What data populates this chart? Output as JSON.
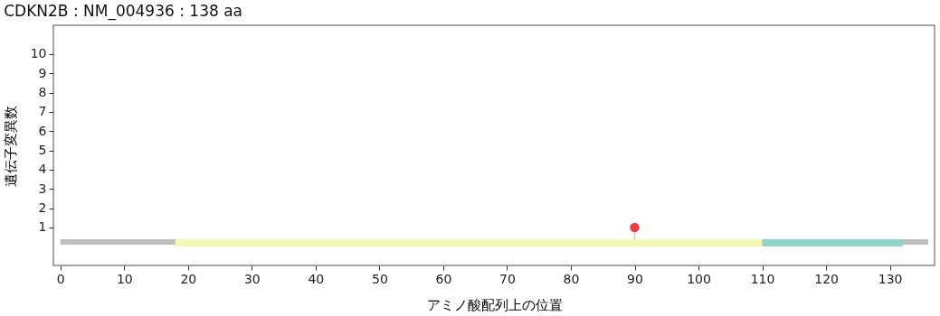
{
  "chart_data": {
    "type": "lollipop",
    "title": "CDKN2B : NM_004936 : 138 aa",
    "xlabel": "アミノ酸配列上の位置",
    "ylabel": "遺伝子変異数",
    "x": [
      90
    ],
    "series": [
      {
        "type": "line",
        "marker": "none",
        "x": [
          0,
          136
        ],
        "color": "#bebebe",
        "values": [
          0.25,
          0.25
        ]
      },
      {
        "type": "line",
        "marker": "none",
        "x": [
          18,
          110
        ],
        "color": "#f3f8b4",
        "values": [
          0.2,
          0.2
        ]
      },
      {
        "type": "line",
        "marker": "none",
        "x": [
          110,
          132
        ],
        "color": "#93d4c8",
        "values": [
          0.2,
          0.2
        ]
      },
      {
        "color": "#e84141",
        "values": [
          1
        ]
      }
    ],
    "xlim": [
      -1.1,
      137
    ],
    "ylim": [
      -0.97,
      11.5
    ],
    "xticks": [
      0,
      10,
      20,
      30,
      40,
      50,
      60,
      70,
      80,
      90,
      100,
      110,
      120,
      130
    ],
    "yticks": [
      1,
      2,
      3,
      4,
      5,
      6,
      7,
      8,
      9,
      10
    ],
    "grid": false,
    "marker": "circle"
  }
}
